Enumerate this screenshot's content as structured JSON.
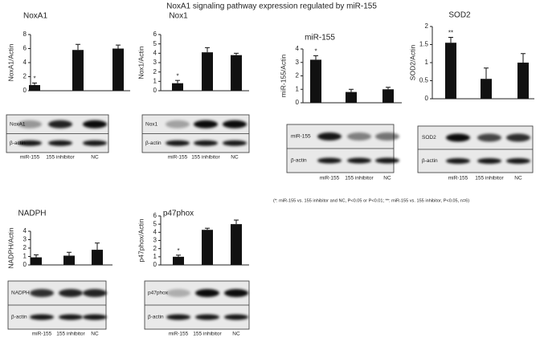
{
  "title": "NoxA1 signaling pathway expression regulated by miR-155",
  "footnote": "(*: miR-155 vs. 155 inhibitor and NC, P<0.05 or P<0.01; **: miR-155 vs. 155 inhibitor, P<0.05, n=6)",
  "chart_data": [
    {
      "type": "bar",
      "title": "NoxA1",
      "y_label": "NoxA1/Actin",
      "categories": [
        "miR-155",
        "155 inhibitor",
        "NC"
      ],
      "values": [
        0.8,
        5.8,
        6.0
      ],
      "errors": [
        0.3,
        0.8,
        0.5
      ],
      "significance": [
        "*",
        null,
        null
      ],
      "color": "#111111",
      "ylim": [
        0,
        8
      ],
      "yticks": [
        0,
        2,
        4,
        6,
        8
      ],
      "blot_rows": [
        "NoxA1",
        "β-actin"
      ]
    },
    {
      "type": "bar",
      "title": "Nox1",
      "y_label": "Nox1/Actin",
      "categories": [
        "miR-155",
        "155 inhibitor",
        "NC"
      ],
      "values": [
        0.8,
        4.1,
        3.8
      ],
      "errors": [
        0.3,
        0.5,
        0.2
      ],
      "significance": [
        "*",
        null,
        null
      ],
      "color": "#111111",
      "ylim": [
        0,
        6
      ],
      "yticks": [
        0,
        1,
        2,
        3,
        4,
        5,
        6
      ],
      "blot_rows": [
        "Nox1",
        "β-actin"
      ]
    },
    {
      "type": "bar",
      "title": "miR-155",
      "y_label": "miR-155/Actin",
      "categories": [
        "miR-155",
        "155 inhibitor",
        "NC"
      ],
      "values": [
        3.2,
        0.8,
        1.0
      ],
      "errors": [
        0.3,
        0.2,
        0.15
      ],
      "significance": [
        "*",
        null,
        null
      ],
      "color": "#111111",
      "ylim": [
        0,
        4
      ],
      "yticks": [
        0,
        1,
        2,
        3,
        4
      ],
      "blot_rows": [
        "miR-155",
        "β-actin"
      ]
    },
    {
      "type": "bar",
      "title": "SOD2",
      "y_label": "SOD2/Actin",
      "categories": [
        "miR-155",
        "155 inhibitor",
        "NC"
      ],
      "values": [
        1.55,
        0.55,
        1.0
      ],
      "errors": [
        0.15,
        0.3,
        0.25
      ],
      "significance": [
        "**",
        null,
        null
      ],
      "color": "#111111",
      "ylim": [
        0,
        2
      ],
      "yticks": [
        0,
        0.5,
        1,
        1.5,
        2
      ],
      "blot_rows": [
        "SOD2",
        "β-actin"
      ]
    },
    {
      "type": "bar",
      "title": "NADPH",
      "y_label": "NADPH/Actin",
      "categories": [
        "miR-155",
        "155 inhibitor",
        "NC"
      ],
      "values": [
        0.9,
        1.1,
        1.8
      ],
      "errors": [
        0.3,
        0.4,
        0.8
      ],
      "significance": [
        null,
        null,
        null
      ],
      "color": "#111111",
      "ylim": [
        0,
        4
      ],
      "yticks": [
        0,
        1,
        2,
        3,
        4
      ],
      "blot_rows": [
        "NADPH",
        "β-actin"
      ]
    },
    {
      "type": "bar",
      "title": "p47phox",
      "y_label": "p47phox/Actin",
      "categories": [
        "miR-155",
        "155 inhibitor",
        "NC"
      ],
      "values": [
        1.0,
        4.3,
        5.0
      ],
      "errors": [
        0.2,
        0.2,
        0.5
      ],
      "significance": [
        "*",
        null,
        null
      ],
      "color": "#111111",
      "ylim": [
        0,
        6
      ],
      "yticks": [
        0,
        1,
        2,
        3,
        4,
        5,
        6
      ],
      "blot_rows": [
        "p47phox",
        "β-actin"
      ]
    }
  ]
}
